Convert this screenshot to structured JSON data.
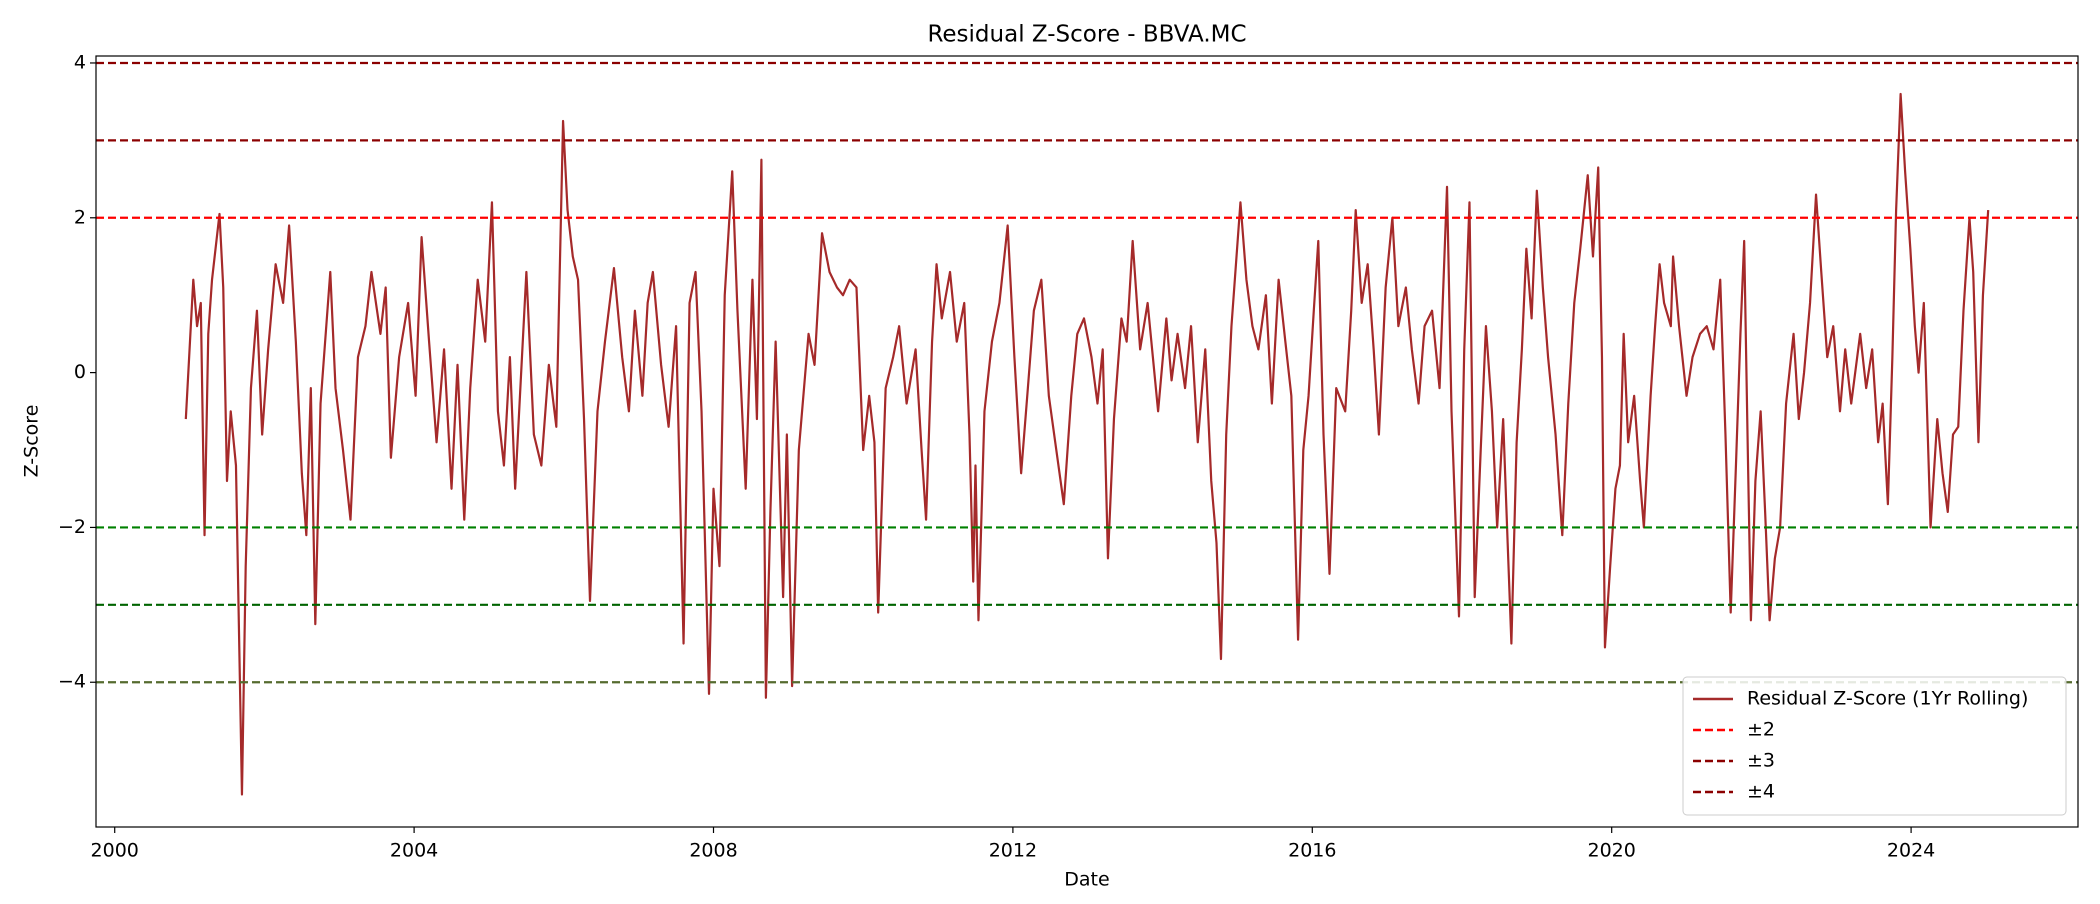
{
  "chart_data": {
    "type": "line",
    "title": "Residual Z-Score - BBVA.MC",
    "xlabel": "Date",
    "ylabel": "Z-Score",
    "xlim": [
      1999.75,
      2026.23
    ],
    "ylim": [
      -5.87,
      4.09
    ],
    "xticks": [
      2000,
      2004,
      2008,
      2012,
      2016,
      2020,
      2024
    ],
    "yticks": [
      {
        "value": -4,
        "label": "−4"
      },
      {
        "value": -2,
        "label": "−2"
      },
      0,
      2,
      4
    ],
    "grid": false,
    "legend": "lower right",
    "x": [
      2000.95,
      2001.0,
      2001.05,
      2001.1,
      2001.15,
      2001.2,
      2001.25,
      2001.3,
      2001.4,
      2001.45,
      2001.5,
      2001.55,
      2001.62,
      2001.7,
      2001.75,
      2001.82,
      2001.9,
      2001.97,
      2002.05,
      2002.15,
      2002.25,
      2002.33,
      2002.42,
      2002.5,
      2002.56,
      2002.62,
      2002.68,
      2002.75,
      2002.88,
      2002.95,
      2003.05,
      2003.15,
      2003.25,
      2003.35,
      2003.43,
      2003.55,
      2003.62,
      2003.69,
      2003.8,
      2003.92,
      2004.02,
      2004.1,
      2004.2,
      2004.3,
      2004.4,
      2004.5,
      2004.58,
      2004.67,
      2004.75,
      2004.85,
      2004.95,
      2005.04,
      2005.12,
      2005.2,
      2005.28,
      2005.35,
      2005.5,
      2005.6,
      2005.7,
      2005.8,
      2005.9,
      2005.99,
      2006.05,
      2006.12,
      2006.19,
      2006.27,
      2006.35,
      2006.45,
      2006.55,
      2006.67,
      2006.78,
      2006.87,
      2006.95,
      2007.05,
      2007.12,
      2007.19,
      2007.3,
      2007.4,
      2007.5,
      2007.6,
      2007.68,
      2007.76,
      2007.84,
      2007.94,
      2008.0,
      2008.08,
      2008.15,
      2008.25,
      2008.32,
      2008.43,
      2008.52,
      2008.58,
      2008.64,
      2008.7,
      2008.76,
      2008.83,
      2008.93,
      2008.98,
      2009.05,
      2009.14,
      2009.27,
      2009.35,
      2009.45,
      2009.55,
      2009.65,
      2009.73,
      2009.82,
      2009.91,
      2010.0,
      2010.08,
      2010.15,
      2010.2,
      2010.3,
      2010.4,
      2010.48,
      2010.58,
      2010.7,
      2010.78,
      2010.84,
      2010.92,
      2010.98,
      2011.05,
      2011.16,
      2011.25,
      2011.35,
      2011.42,
      2011.47,
      2011.5,
      2011.54,
      2011.62,
      2011.72,
      2011.82,
      2011.93,
      2012.02,
      2012.11,
      2012.2,
      2012.28,
      2012.38,
      2012.48,
      2012.58,
      2012.68,
      2012.78,
      2012.86,
      2012.95,
      2013.05,
      2013.13,
      2013.2,
      2013.27,
      2013.35,
      2013.45,
      2013.52,
      2013.6,
      2013.7,
      2013.8,
      2013.87,
      2013.94,
      2014.05,
      2014.12,
      2014.2,
      2014.3,
      2014.38,
      2014.47,
      2014.57,
      2014.65,
      2014.72,
      2014.78,
      2014.85,
      2014.92,
      2015.04,
      2015.12,
      2015.2,
      2015.28,
      2015.38,
      2015.46,
      2015.55,
      2015.64,
      2015.72,
      2015.81,
      2015.88,
      2015.95,
      2016.02,
      2016.08,
      2016.15,
      2016.23,
      2016.32,
      2016.44,
      2016.52,
      2016.58,
      2016.66,
      2016.74,
      2016.82,
      2016.89,
      2016.98,
      2017.07,
      2017.15,
      2017.25,
      2017.33,
      2017.42,
      2017.5,
      2017.6,
      2017.7,
      2017.8,
      2017.86,
      2017.96,
      2018.03,
      2018.1,
      2018.17,
      2018.25,
      2018.32,
      2018.4,
      2018.47,
      2018.55,
      2018.61,
      2018.66,
      2018.73,
      2018.8,
      2018.86,
      2018.93,
      2019.0,
      2019.08,
      2019.15,
      2019.25,
      2019.34,
      2019.42,
      2019.5,
      2019.58,
      2019.68,
      2019.75,
      2019.82,
      2019.87,
      2019.91,
      2019.98,
      2020.05,
      2020.11,
      2020.16,
      2020.22,
      2020.3,
      2020.38,
      2020.43,
      2020.52,
      2020.58,
      2020.64,
      2020.7,
      2020.79,
      2020.82,
      2020.9,
      2021.0,
      2021.08,
      2021.18,
      2021.27,
      2021.36,
      2021.45,
      2021.52,
      2021.59,
      2021.66,
      2021.72,
      2021.77,
      2021.82,
      2021.86,
      2021.92,
      2021.99,
      2022.05,
      2022.11,
      2022.18,
      2022.25,
      2022.33,
      2022.43,
      2022.5,
      2022.57,
      2022.65,
      2022.73,
      2022.8,
      2022.88,
      2022.96,
      2023.05,
      2023.12,
      2023.2,
      2023.32,
      2023.4,
      2023.48,
      2023.56,
      2023.62,
      2023.69,
      2023.75,
      2023.8,
      2023.86,
      2023.92,
      2023.99,
      2024.05,
      2024.1,
      2024.17,
      2024.26,
      2024.35,
      2024.42,
      2024.49,
      2024.56,
      2024.63,
      2024.7,
      2024.78,
      2024.83,
      2024.9,
      2024.96,
      2025.03
    ],
    "series": [
      {
        "name": "Residual Z-Score (1Yr Rolling)",
        "color": "#a52a2a",
        "values": [
          -0.6,
          0.3,
          1.2,
          0.6,
          0.9,
          -2.1,
          0.5,
          1.2,
          2.05,
          1.1,
          -1.4,
          -0.5,
          -1.2,
          -5.45,
          -2.5,
          -0.2,
          0.8,
          -0.8,
          0.3,
          1.4,
          0.9,
          1.9,
          0.4,
          -1.3,
          -2.1,
          -0.2,
          -3.25,
          -0.4,
          1.3,
          -0.2,
          -1.0,
          -1.9,
          0.2,
          0.6,
          1.3,
          0.5,
          1.1,
          -1.1,
          0.2,
          0.9,
          -0.3,
          1.75,
          0.4,
          -0.9,
          0.3,
          -1.5,
          0.1,
          -1.9,
          -0.2,
          1.2,
          0.4,
          2.2,
          -0.5,
          -1.2,
          0.2,
          -1.5,
          1.3,
          -0.8,
          -1.2,
          0.1,
          -0.7,
          3.25,
          2.1,
          1.5,
          1.2,
          -0.6,
          -2.95,
          -0.5,
          0.4,
          1.35,
          0.2,
          -0.5,
          0.8,
          -0.3,
          0.9,
          1.3,
          0.1,
          -0.7,
          0.6,
          -3.5,
          0.9,
          1.3,
          -0.5,
          -4.15,
          -1.5,
          -2.5,
          1.0,
          2.6,
          0.8,
          -1.5,
          1.2,
          -0.6,
          2.75,
          -4.2,
          -1.8,
          0.4,
          -2.9,
          -0.8,
          -4.05,
          -1.0,
          0.5,
          0.1,
          1.8,
          1.3,
          1.1,
          1.0,
          1.2,
          1.1,
          -1.0,
          -0.3,
          -0.9,
          -3.1,
          -0.2,
          0.2,
          0.6,
          -0.4,
          0.3,
          -1.0,
          -1.9,
          0.4,
          1.4,
          0.7,
          1.3,
          0.4,
          0.9,
          -0.8,
          -2.7,
          -1.2,
          -3.2,
          -0.5,
          0.4,
          0.9,
          1.9,
          0.2,
          -1.3,
          -0.2,
          0.8,
          1.2,
          -0.3,
          -1.0,
          -1.7,
          -0.3,
          0.5,
          0.7,
          0.2,
          -0.4,
          0.3,
          -2.4,
          -0.6,
          0.7,
          0.4,
          1.7,
          0.3,
          0.9,
          0.2,
          -0.5,
          0.7,
          -0.1,
          0.5,
          -0.2,
          0.6,
          -0.9,
          0.3,
          -1.4,
          -2.2,
          -3.7,
          -0.8,
          0.6,
          2.2,
          1.2,
          0.6,
          0.3,
          1.0,
          -0.4,
          1.2,
          0.4,
          -0.3,
          -3.45,
          -1.0,
          -0.3,
          0.8,
          1.7,
          -0.8,
          -2.6,
          -0.2,
          -0.5,
          0.8,
          2.1,
          0.9,
          1.4,
          0.3,
          -0.8,
          1.1,
          2.0,
          0.6,
          1.1,
          0.3,
          -0.4,
          0.6,
          0.8,
          -0.2,
          2.4,
          -0.5,
          -3.15,
          0.3,
          2.2,
          -2.9,
          -1.0,
          0.6,
          -0.5,
          -2.0,
          -0.6,
          -2.2,
          -3.5,
          -0.9,
          0.3,
          1.6,
          0.7,
          2.35,
          1.1,
          0.2,
          -0.8,
          -2.1,
          -0.4,
          0.9,
          1.6,
          2.55,
          1.5,
          2.65,
          0.2,
          -3.55,
          -2.5,
          -1.5,
          -1.2,
          0.5,
          -0.9,
          -0.3,
          -1.4,
          -2.0,
          -0.3,
          0.6,
          1.4,
          0.9,
          0.6,
          1.5,
          0.6,
          -0.3,
          0.2,
          0.5,
          0.6,
          0.3,
          1.2,
          -0.8,
          -3.1,
          -1.2,
          0.5,
          1.7,
          -1.1,
          -3.2,
          -1.4,
          -0.5,
          -1.8,
          -3.2,
          -2.4,
          -2.0,
          -0.4,
          0.5,
          -0.6,
          0.0,
          0.9,
          2.3,
          1.3,
          0.2,
          0.6,
          -0.5,
          0.3,
          -0.4,
          0.5,
          -0.2,
          0.3,
          -0.9,
          -0.4,
          -1.7,
          0.2,
          2.1,
          3.6,
          2.6,
          1.6,
          0.6,
          0.0,
          0.9,
          -2.0,
          -0.6,
          -1.3,
          -1.8,
          -0.8,
          -0.7,
          0.8,
          2.0,
          1.3,
          -0.9,
          1.0,
          2.1
        ]
      }
    ],
    "reference_lines": [
      {
        "name": "±2",
        "upper": 2,
        "lower": -2,
        "upper_color": "#ff0000",
        "lower_color": "#008000"
      },
      {
        "name": "±3",
        "upper": 3,
        "lower": -3,
        "upper_color": "#8b0000",
        "lower_color": "#006400"
      },
      {
        "name": "±4",
        "upper": 4,
        "lower": -4,
        "upper_color": "#8b0000",
        "lower_color": "#556b2f"
      }
    ]
  }
}
